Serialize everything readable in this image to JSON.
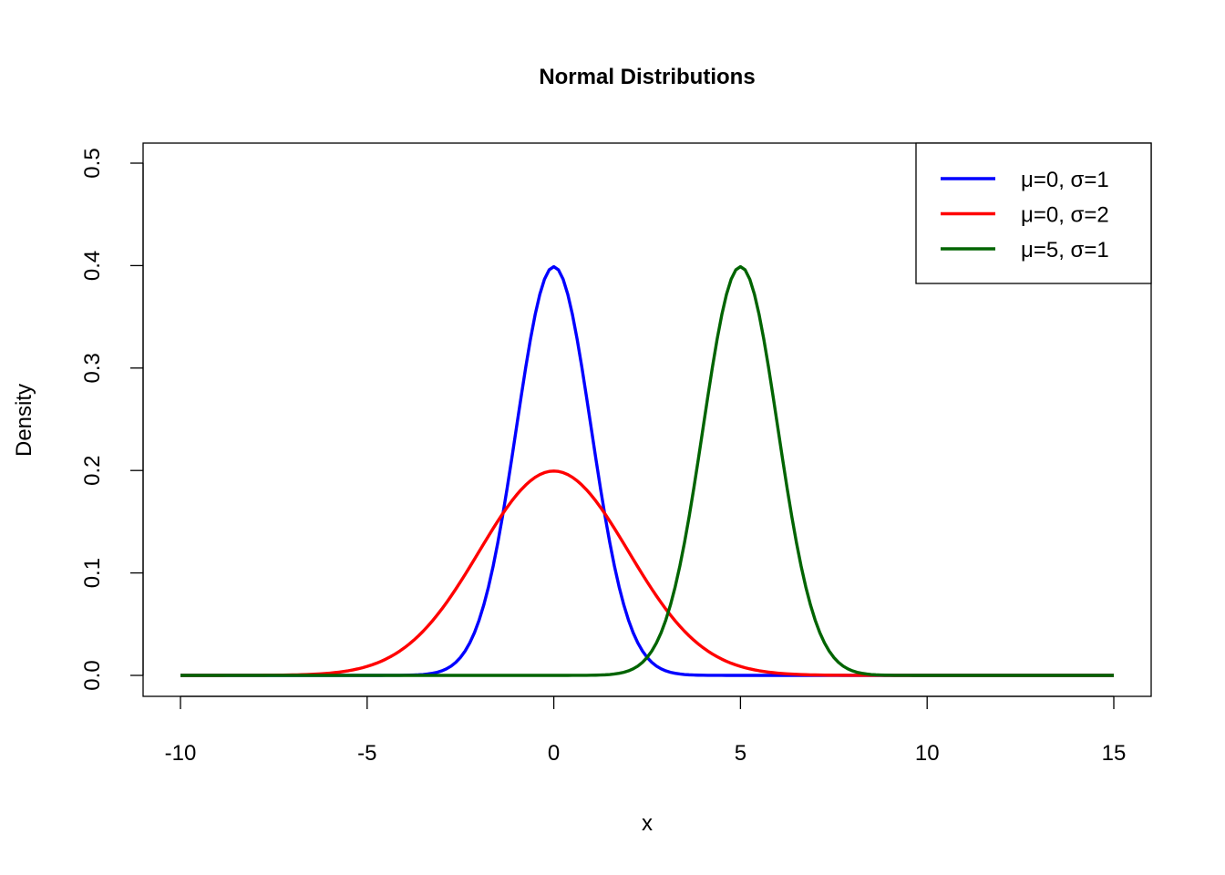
{
  "chart_data": {
    "type": "line",
    "title": "Normal Distributions",
    "xlabel": "x",
    "ylabel": "Density",
    "xlim": [
      -10,
      15
    ],
    "ylim": [
      0,
      0.5
    ],
    "x_ticks": [
      "-10",
      "-5",
      "0",
      "5",
      "10",
      "15"
    ],
    "x_tick_values": [
      -10,
      -5,
      0,
      5,
      10,
      15
    ],
    "y_ticks": [
      "0.0",
      "0.1",
      "0.2",
      "0.3",
      "0.4",
      "0.5"
    ],
    "y_tick_values": [
      0,
      0.1,
      0.2,
      0.3,
      0.4,
      0.5
    ],
    "x_range": [
      -10,
      15
    ],
    "points_per_series": 201,
    "grid": false,
    "legend_position": "top-right",
    "series": [
      {
        "name": "μ=0, σ=1",
        "mu": 0,
        "sigma": 1,
        "color": "#0000FF",
        "peak": 0.399
      },
      {
        "name": "μ=0, σ=2",
        "mu": 0,
        "sigma": 2,
        "color": "#FF0000",
        "peak": 0.199
      },
      {
        "name": "μ=5, σ=1",
        "mu": 5,
        "sigma": 1,
        "color": "#006400",
        "peak": 0.399
      }
    ]
  }
}
